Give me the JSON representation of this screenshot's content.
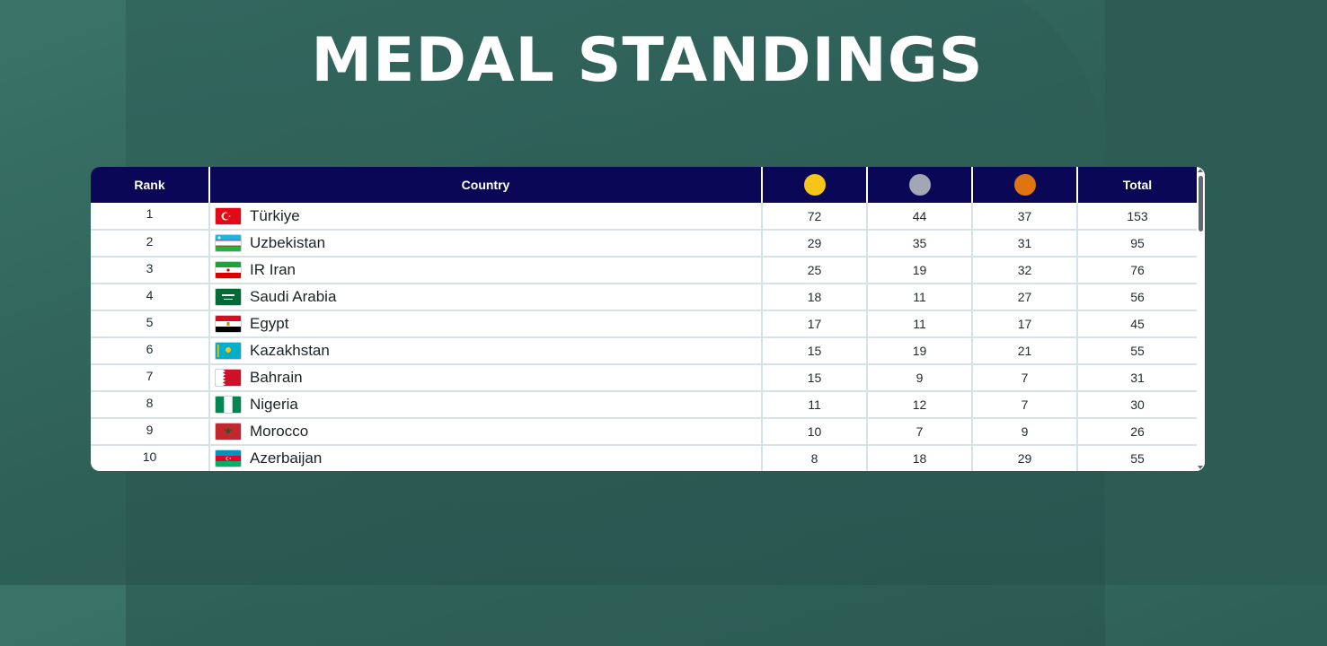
{
  "page": {
    "title": "MEDAL STANDINGS"
  },
  "table": {
    "headers": {
      "rank": "Rank",
      "country": "Country",
      "total": "Total"
    },
    "medal_colors": {
      "gold": "#f5c518",
      "silver": "#a3a6b4",
      "bronze": "#e07410"
    },
    "rows": [
      {
        "rank": "1",
        "country": "Türkiye",
        "flag": "turkey",
        "gold": "72",
        "silver": "44",
        "bronze": "37",
        "total": "153"
      },
      {
        "rank": "2",
        "country": "Uzbekistan",
        "flag": "uzbekistan",
        "gold": "29",
        "silver": "35",
        "bronze": "31",
        "total": "95"
      },
      {
        "rank": "3",
        "country": "IR Iran",
        "flag": "iran",
        "gold": "25",
        "silver": "19",
        "bronze": "32",
        "total": "76"
      },
      {
        "rank": "4",
        "country": "Saudi Arabia",
        "flag": "saudi-arabia",
        "gold": "18",
        "silver": "11",
        "bronze": "27",
        "total": "56"
      },
      {
        "rank": "5",
        "country": "Egypt",
        "flag": "egypt",
        "gold": "17",
        "silver": "11",
        "bronze": "17",
        "total": "45"
      },
      {
        "rank": "6",
        "country": "Kazakhstan",
        "flag": "kazakhstan",
        "gold": "15",
        "silver": "19",
        "bronze": "21",
        "total": "55"
      },
      {
        "rank": "7",
        "country": "Bahrain",
        "flag": "bahrain",
        "gold": "15",
        "silver": "9",
        "bronze": "7",
        "total": "31"
      },
      {
        "rank": "8",
        "country": "Nigeria",
        "flag": "nigeria",
        "gold": "11",
        "silver": "12",
        "bronze": "7",
        "total": "30"
      },
      {
        "rank": "9",
        "country": "Morocco",
        "flag": "morocco",
        "gold": "10",
        "silver": "7",
        "bronze": "9",
        "total": "26"
      },
      {
        "rank": "10",
        "country": "Azerbaijan",
        "flag": "azerbaijan",
        "gold": "8",
        "silver": "18",
        "bronze": "29",
        "total": "55"
      }
    ]
  }
}
